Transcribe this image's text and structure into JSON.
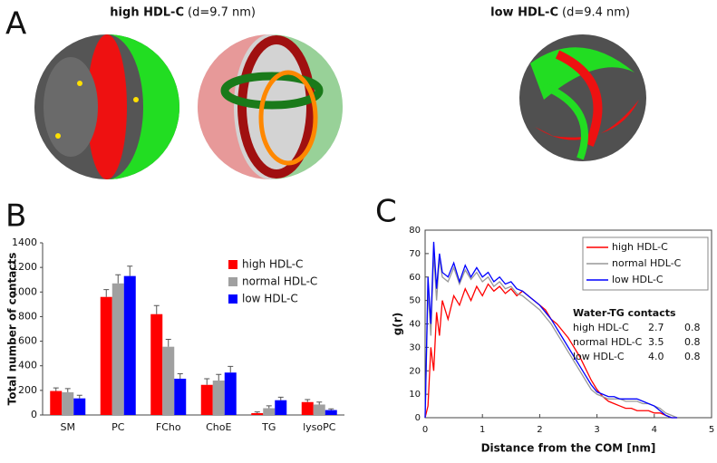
{
  "panel_a": {
    "label": "A",
    "left_title_bold": "high HDL-C",
    "left_title_rest": "(d=9.7 nm)",
    "right_title_bold": "low HDL-C",
    "right_title_rest": "(d=9.4 nm)"
  },
  "chart_data": [
    {
      "type": "bar",
      "panel_label": "B",
      "y_label": "Total number of contacts",
      "categories": [
        "SM",
        "PC",
        "FCho",
        "ChoE",
        "TG",
        "lysoPC"
      ],
      "series": [
        {
          "name": "high HDL-C",
          "color": "#ff0000",
          "values": [
            195,
            960,
            820,
            245,
            15,
            105
          ],
          "errors": [
            25,
            60,
            70,
            50,
            10,
            20
          ]
        },
        {
          "name": "normal HDL-C",
          "color": "#a0a0a0",
          "values": [
            185,
            1070,
            555,
            280,
            55,
            85
          ],
          "errors": [
            30,
            70,
            60,
            50,
            20,
            20
          ]
        },
        {
          "name": "low HDL-C",
          "color": "#0000ff",
          "values": [
            135,
            1130,
            295,
            345,
            120,
            40
          ],
          "errors": [
            25,
            80,
            40,
            50,
            25,
            10
          ]
        }
      ],
      "ylim": [
        0,
        1400
      ],
      "yticks": [
        0,
        200,
        400,
        600,
        800,
        1000,
        1200,
        1400
      ],
      "legend": "upper right"
    },
    {
      "type": "line",
      "panel_label": "C",
      "x_label": "Distance from the COM [nm]",
      "y_label": "g(r)",
      "x": [
        0,
        0.05,
        0.1,
        0.15,
        0.2,
        0.25,
        0.3,
        0.4,
        0.5,
        0.6,
        0.7,
        0.8,
        0.9,
        1.0,
        1.1,
        1.2,
        1.3,
        1.4,
        1.5,
        1.6,
        1.7,
        1.8,
        1.9,
        2.0,
        2.1,
        2.2,
        2.3,
        2.4,
        2.5,
        2.6,
        2.7,
        2.8,
        2.9,
        3.0,
        3.1,
        3.2,
        3.3,
        3.4,
        3.5,
        3.6,
        3.7,
        3.8,
        3.9,
        4.0,
        4.1,
        4.2,
        4.3,
        4.4
      ],
      "series": [
        {
          "name": "high HDL-C",
          "color": "#ff0000",
          "values": [
            0,
            5,
            30,
            20,
            45,
            35,
            50,
            42,
            52,
            48,
            55,
            50,
            56,
            52,
            57,
            54,
            56,
            53,
            55,
            52,
            54,
            52,
            50,
            48,
            46,
            42,
            40,
            37,
            34,
            30,
            26,
            21,
            16,
            12,
            9,
            7,
            6,
            5,
            4,
            4,
            3,
            3,
            3,
            2,
            2,
            1,
            0,
            0
          ]
        },
        {
          "name": "normal HDL-C",
          "color": "#999999",
          "values": [
            0,
            55,
            35,
            70,
            50,
            68,
            60,
            58,
            64,
            57,
            63,
            59,
            62,
            58,
            60,
            56,
            58,
            55,
            56,
            53,
            52,
            50,
            48,
            46,
            43,
            40,
            36,
            32,
            28,
            24,
            20,
            16,
            12,
            10,
            9,
            8,
            8,
            8,
            7,
            7,
            7,
            6,
            6,
            5,
            4,
            2,
            1,
            0
          ]
        },
        {
          "name": "low HDL-C",
          "color": "#0000ff",
          "values": [
            0,
            60,
            40,
            75,
            55,
            70,
            62,
            60,
            66,
            58,
            65,
            60,
            64,
            60,
            62,
            58,
            60,
            57,
            58,
            55,
            54,
            52,
            50,
            48,
            45,
            42,
            38,
            34,
            30,
            26,
            22,
            18,
            14,
            11,
            10,
            9,
            9,
            8,
            8,
            8,
            8,
            7,
            6,
            5,
            3,
            1,
            0,
            0
          ]
        }
      ],
      "xlim": [
        0,
        5
      ],
      "xticks": [
        0,
        1,
        2,
        3,
        4,
        5
      ],
      "ylim": [
        0,
        80
      ],
      "yticks": [
        0,
        10,
        20,
        30,
        40,
        50,
        60,
        70,
        80
      ],
      "legend": "upper right",
      "annotation": {
        "title": "Water-TG contacts",
        "rows": [
          [
            "high HDL-C",
            "2.7",
            "0.8"
          ],
          [
            "normal HDL-C",
            "3.5",
            "0.8"
          ],
          [
            "low HDL-C",
            "4.0",
            "0.8"
          ]
        ]
      }
    }
  ]
}
